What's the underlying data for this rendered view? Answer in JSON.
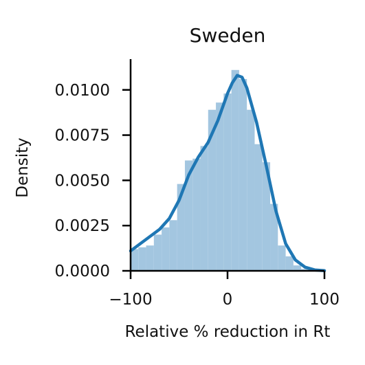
{
  "chart_data": {
    "type": "bar",
    "title": "Sweden",
    "xlabel": "Relative % reduction in Rt",
    "ylabel": "Density",
    "xlim": [
      -100,
      100
    ],
    "ylim": [
      0,
      0.0117
    ],
    "x_ticks": [
      -100,
      0,
      100
    ],
    "x_tick_labels": [
      "−100",
      "0",
      "100"
    ],
    "y_ticks": [
      0,
      0.0025,
      0.005,
      0.0075,
      0.01
    ],
    "y_tick_labels": [
      "0.0000",
      "0.0025",
      "0.0050",
      "0.0075",
      "0.0100"
    ],
    "histogram": {
      "bin_edges": [
        -100,
        -92,
        -84,
        -76,
        -68,
        -60,
        -52,
        -44,
        -36,
        -28,
        -20,
        -12,
        -4,
        4,
        12,
        20,
        28,
        36,
        44,
        52,
        60,
        68,
        76,
        84
      ],
      "density": [
        0.0012,
        0.0013,
        0.0014,
        0.002,
        0.0024,
        0.0028,
        0.0048,
        0.0061,
        0.0062,
        0.0069,
        0.0089,
        0.0093,
        0.0098,
        0.0111,
        0.0106,
        0.0089,
        0.007,
        0.006,
        0.0037,
        0.0014,
        0.0008,
        0.0003,
        0.0001
      ]
    },
    "kde": {
      "x": [
        -100,
        -90,
        -80,
        -70,
        -60,
        -50,
        -40,
        -30,
        -20,
        -10,
        0,
        5,
        10,
        15,
        20,
        30,
        40,
        50,
        60,
        70,
        80,
        90,
        100
      ],
      "y": [
        0.0011,
        0.0015,
        0.0019,
        0.0023,
        0.0029,
        0.0039,
        0.0053,
        0.0063,
        0.0071,
        0.0083,
        0.0098,
        0.0104,
        0.0108,
        0.0107,
        0.0101,
        0.0082,
        0.0058,
        0.0033,
        0.0015,
        0.0006,
        0.0002,
        5e-05,
        1e-05
      ]
    },
    "colors": {
      "bars": "#a3c6e0",
      "line": "#1f77b4",
      "axis": "#000000",
      "text": "#111111"
    },
    "grid": false
  }
}
